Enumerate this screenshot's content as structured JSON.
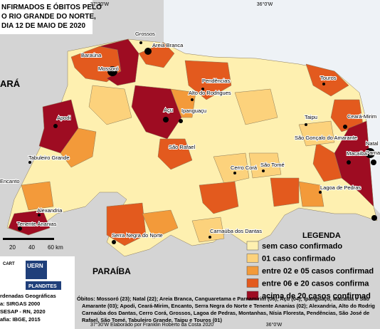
{
  "title_lines": [
    "NFIRMADOS E ÓBITOS PELO",
    "O RIO GRANDE DO NORTE,",
    "DIA 12 DE MAIO DE 2020"
  ],
  "coordinates": {
    "top": [
      "37°30'W",
      "36°0'W"
    ],
    "bottom": [
      "37°30'W",
      "36°0'W"
    ]
  },
  "regions": [
    "ARÁ",
    "PARAÍBA"
  ],
  "places": [
    "Grossos",
    "Areia Branca",
    "Baraúna",
    "Mossoró",
    "Pendências",
    "Alto do Rodrigues",
    "Touros",
    "Taipu",
    "Ceará-Mirim",
    "Natal",
    "Parna",
    "Açu",
    "Ipanguaçu",
    "Apodi",
    "São Gonçalo do Amarante",
    "Macaíba",
    "São Rafael",
    "Tabuleiro Grande",
    "Cerro Corá",
    "São Tomé",
    "Lagoa de Pedras",
    "Encanto",
    "Alexandria",
    "Tenente Ananias",
    "Serra Negra do Norte",
    "Carnaúba dos Dantas"
  ],
  "legend": {
    "title": "LEGENDA",
    "items": [
      {
        "label": "sem caso confirmado",
        "color": "#fef0b0"
      },
      {
        "label": "01 caso confirmado",
        "color": "#fcd27c"
      },
      {
        "label": "entre 02 e 05 casos confirmad",
        "color": "#f39a3a"
      },
      {
        "label": "entre 06 e 20 casos confirma",
        "color": "#e35a1e"
      },
      {
        "label": "acima de 20 casos confirmad",
        "color": "#9e0c22"
      }
    ]
  },
  "scale": [
    "20",
    "40",
    "60 km"
  ],
  "deaths_note": [
    "Óbitos: Mossoró (23); Natal (22); Areia Branca, Canguaretama e Parnamirim (06); Açu (04); Ipanguaçu, Macaíba e São",
    "Amarante (03); Apodi, Ceará-Mirim, Encanto, Serra Negra do Norte e Tenente Ananias (02); Alexandria, Alto do Rodrig",
    "Carnaúba dos Dantas, Cerro Corá, Grossos, Lagoa de Pedras, Montanhas, Nísia Floresta, Pendências, São José de",
    "Rafael, São Tomé, Tabuleiro Grande, Taipu e Touros (01)"
  ],
  "metadata": [
    "rdenadas Geográficas",
    "a: SIRGAS 2000",
    "SESAP - RN, 2020",
    "afia: IBGE, 2015"
  ],
  "logos": [
    "CART",
    "UERN",
    "PLANDITES"
  ],
  "credit": "Elaborado por Franklin Roberto da Costa  2020"
}
